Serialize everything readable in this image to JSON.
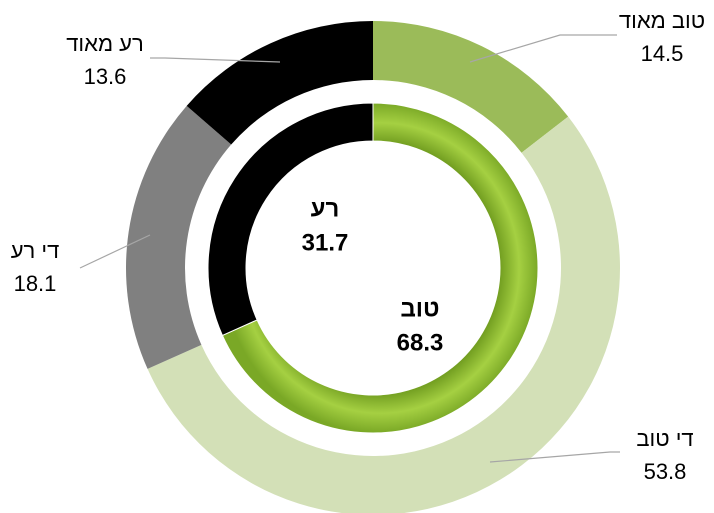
{
  "chart_data": {
    "type": "donut",
    "rings": [
      {
        "categories": [
          "טוב מאוד",
          "די טוב",
          "די רע",
          "רע מאוד"
        ],
        "values": [
          14.5,
          53.8,
          18.1,
          13.6
        ],
        "colors": [
          "#9bbb59",
          "#d3e0b7",
          "#808080",
          "#000000"
        ]
      },
      {
        "categories": [
          "טוב",
          "רע"
        ],
        "values": [
          68.3,
          31.7
        ],
        "colors": [
          "#8cb83a",
          "#000000"
        ]
      }
    ]
  }
}
